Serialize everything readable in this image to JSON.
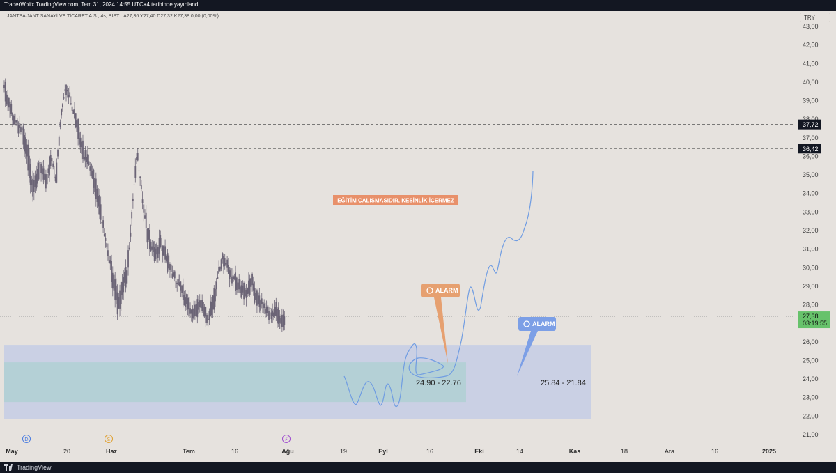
{
  "header": {
    "publish_text": "TraderWolfx TradingView.com, Tem 31, 2024 14:55 UTC+4 tarihinde yayınlandı"
  },
  "symbol_info": {
    "name": "JANTSA JANT SANAYİ VE TİCARET A.Ş., 4s, BIST",
    "ohlc": "A27,36  Y27,40  D27,32  K27,38  0,00 (0,00%)"
  },
  "currency": "TRY",
  "footer": {
    "brand": "TradingView"
  },
  "chart_data": {
    "type": "candlestick",
    "y_axis": {
      "range": [
        21,
        43
      ],
      "ticks": [
        "21,00",
        "22,00",
        "23,00",
        "24,00",
        "25,00",
        "26,00",
        "27,00",
        "28,00",
        "29,00",
        "30,00",
        "31,00",
        "32,00",
        "33,00",
        "34,00",
        "35,00",
        "36,00",
        "37,00",
        "38,00",
        "39,00",
        "40,00",
        "41,00",
        "42,00",
        "43,00"
      ]
    },
    "x_axis": {
      "ticks": [
        "May",
        "20",
        "Haz",
        "Tem",
        "16",
        "Ağu",
        "19",
        "Eyl",
        "16",
        "Eki",
        "14",
        "Kas",
        "18",
        "Ara",
        "16",
        "2025"
      ],
      "bold": [
        "May",
        "Haz",
        "Tem",
        "Ağu",
        "Eyl",
        "Eki",
        "Kas",
        "2025"
      ]
    },
    "price_path": [
      [
        40.1,
        39.0
      ],
      [
        39.2,
        38.3
      ],
      [
        38.3,
        37.9
      ],
      [
        37.9,
        37.4
      ],
      [
        37.4,
        36.5
      ],
      [
        36.5,
        34.5
      ],
      [
        34.5,
        35.2
      ],
      [
        35.2,
        35.6
      ],
      [
        35.6,
        34.8
      ],
      [
        34.8,
        36.2
      ],
      [
        36.2,
        35.0
      ],
      [
        35.0,
        38.4
      ],
      [
        38.4,
        40.2
      ],
      [
        40.2,
        39.3
      ],
      [
        39.3,
        38.5
      ],
      [
        38.5,
        37.2
      ],
      [
        37.2,
        36.4
      ],
      [
        36.4,
        35.9
      ],
      [
        35.9,
        35.0
      ],
      [
        35.0,
        33.8
      ],
      [
        33.8,
        32.4
      ],
      [
        32.4,
        30.8
      ],
      [
        30.8,
        29.6
      ],
      [
        29.6,
        28.2
      ],
      [
        28.2,
        29.3
      ],
      [
        29.3,
        30.0
      ],
      [
        30.0,
        33.5
      ],
      [
        33.5,
        36.5
      ],
      [
        36.5,
        34.2
      ],
      [
        34.2,
        32.2
      ],
      [
        32.2,
        31.4
      ],
      [
        31.4,
        31.0
      ],
      [
        31.0,
        31.6
      ],
      [
        31.6,
        30.8
      ],
      [
        30.8,
        30.2
      ],
      [
        30.2,
        29.6
      ],
      [
        29.6,
        29.2
      ],
      [
        29.2,
        28.6
      ],
      [
        28.6,
        28.1
      ],
      [
        28.1,
        27.7
      ],
      [
        27.7,
        28.4
      ],
      [
        28.4,
        27.9
      ],
      [
        27.9,
        27.5
      ],
      [
        27.5,
        28.4
      ],
      [
        28.4,
        29.8
      ],
      [
        29.8,
        30.9
      ],
      [
        30.9,
        30.2
      ],
      [
        30.2,
        29.7
      ],
      [
        29.7,
        29.3
      ],
      [
        29.3,
        29.0
      ],
      [
        29.0,
        28.9
      ],
      [
        28.9,
        29.4
      ],
      [
        29.4,
        28.6
      ],
      [
        28.6,
        28.3
      ],
      [
        28.3,
        28.0
      ],
      [
        28.0,
        27.6
      ],
      [
        27.6,
        28.0
      ],
      [
        28.0,
        27.36
      ],
      [
        27.36,
        27.38
      ]
    ],
    "last_price": "27,38",
    "countdown": "03:19:55",
    "horizontal_levels": [
      {
        "value": 37.72,
        "label": "37,72"
      },
      {
        "value": 36.42,
        "label": "36,42"
      }
    ],
    "zones": [
      {
        "range": [
          21.84,
          25.84
        ],
        "label": "25.84 - 21.84",
        "color": "#c6cee4"
      },
      {
        "range": [
          22.76,
          24.9
        ],
        "label": "24.90 - 22.76",
        "color": "#b1cfd4"
      }
    ],
    "annotations": {
      "warning": "EĞİTİM ÇALIŞMASIDIR, KESİNLİK İÇERMEZ",
      "alarm_label": "ALARM"
    },
    "event_badges": [
      "D",
      "S",
      "⚡"
    ],
    "colors": {
      "candle": "#6b6476",
      "drawing": "#6f9ce2",
      "alarm_orange": "#e6a070",
      "alarm_blue": "#7c9fe6",
      "price_label_green": "#67c26b",
      "warning_bg": "#e8906a"
    }
  }
}
